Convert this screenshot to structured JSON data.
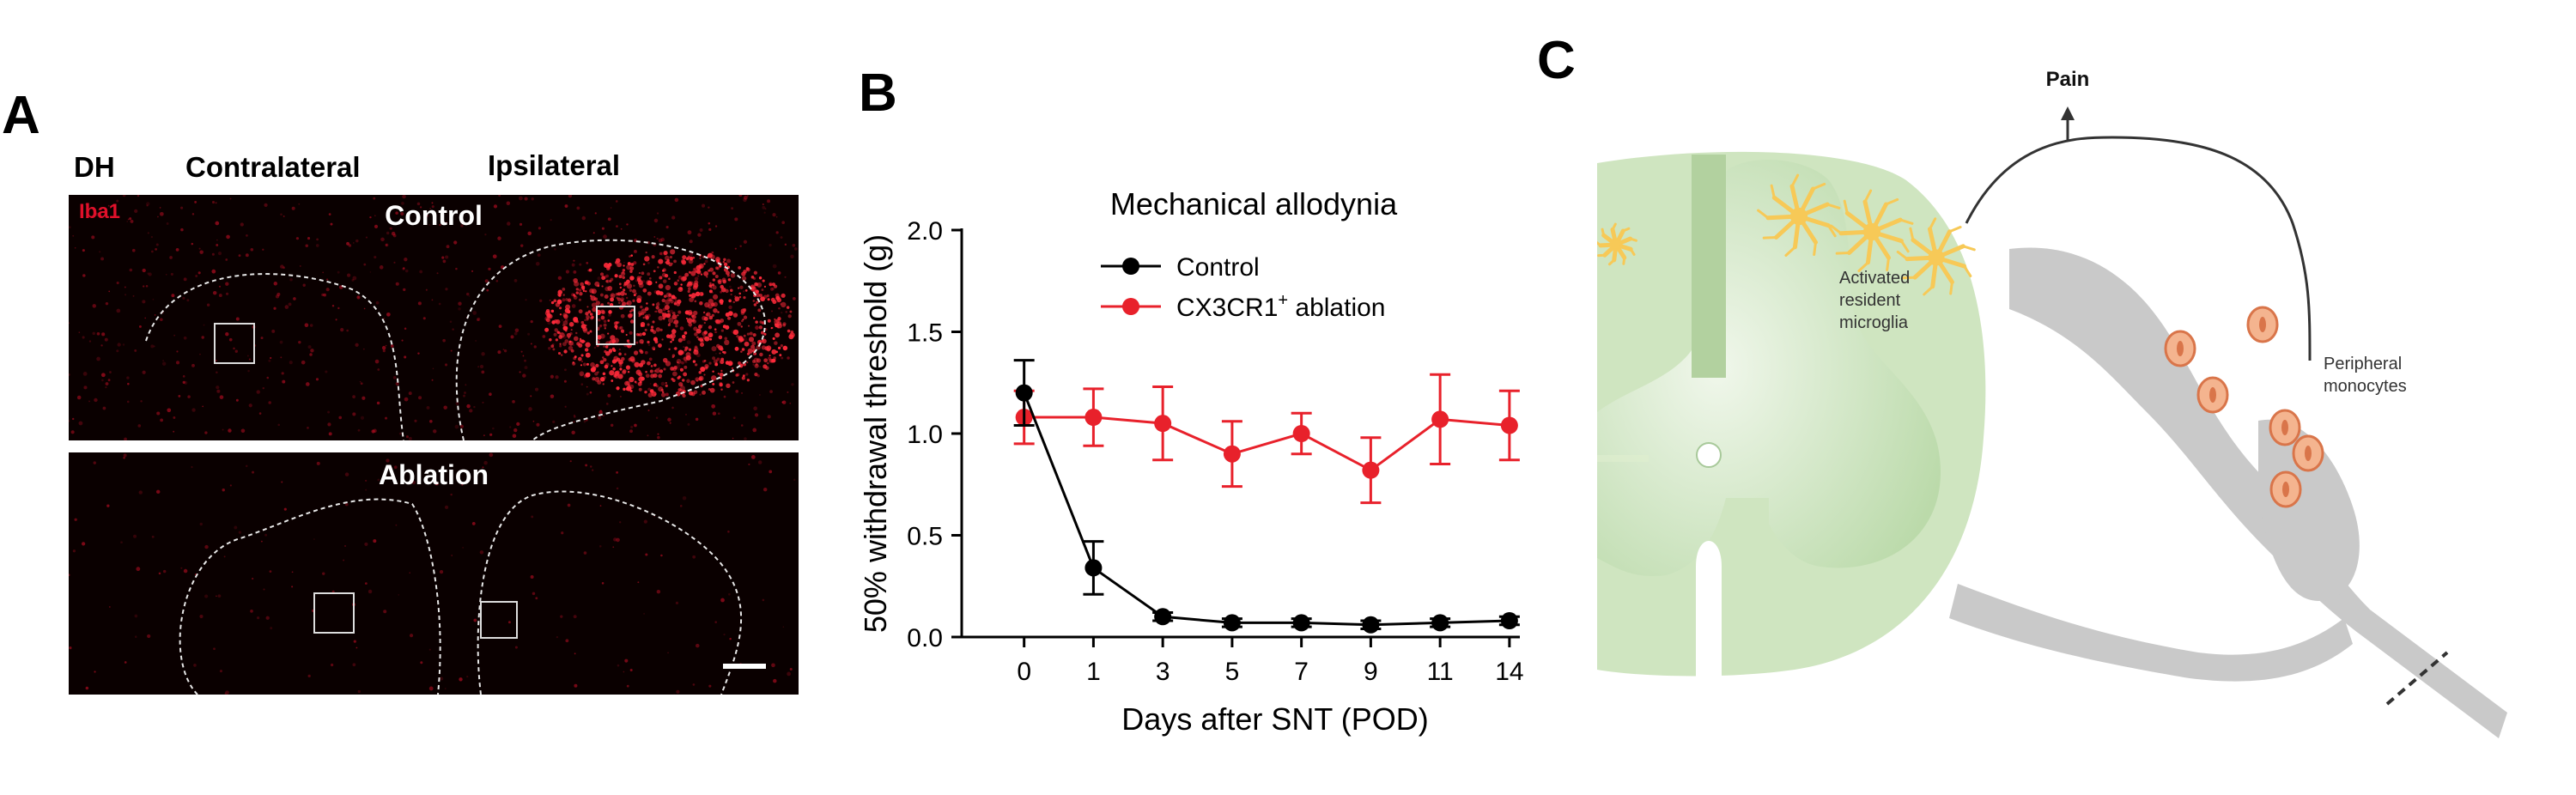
{
  "panels": {
    "a": {
      "letter": "A",
      "column_labels": {
        "dh": "DH",
        "contralateral": "Contralateral",
        "ipsilateral": "Ipsilateral"
      },
      "stain": "Iba1",
      "control_title": "Control",
      "ablation_title": "Ablation",
      "stain_color": "#e0102a"
    },
    "b": {
      "letter": "B"
    },
    "c": {
      "letter": "C",
      "pain_label": "Pain",
      "microglia_label": [
        "Activated",
        "resident",
        "microglia"
      ],
      "monocytes_label": [
        "Peripheral",
        "monocytes"
      ],
      "colors": {
        "cord": "#cfe5c0",
        "grey_matter": "#b9d9a8",
        "nerve": "#c9c9c9",
        "microglia": "#f7c957",
        "monocyte_fill": "#f4b48f",
        "monocyte_stroke": "#d9754a"
      }
    }
  },
  "chart_data": {
    "type": "line",
    "title": "Mechanical allodynia",
    "xlabel": "Days after SNT (POD)",
    "ylabel": "50% withdrawal threshold (g)",
    "categories": [
      "0",
      "1",
      "3",
      "5",
      "7",
      "9",
      "11",
      "14"
    ],
    "ylim": [
      0,
      2.0
    ],
    "yticks": [
      "0.0",
      "0.5",
      "1.0",
      "1.5",
      "2.0"
    ],
    "legend_position": "top-left",
    "grid": false,
    "series": [
      {
        "name": "Control",
        "color": "#000000",
        "values": [
          1.2,
          0.34,
          0.1,
          0.07,
          0.07,
          0.06,
          0.07,
          0.08
        ],
        "errors": [
          0.16,
          0.13,
          0.02,
          0.02,
          0.02,
          0.02,
          0.02,
          0.02
        ]
      },
      {
        "name": "CX3CR1",
        "name_superscript": "+",
        "name_suffix": " ablation",
        "color": "#e8212b",
        "values": [
          1.08,
          1.08,
          1.05,
          0.9,
          1.0,
          0.82,
          1.07,
          1.04
        ],
        "errors": [
          0.13,
          0.14,
          0.18,
          0.16,
          0.1,
          0.16,
          0.22,
          0.17
        ]
      }
    ]
  }
}
